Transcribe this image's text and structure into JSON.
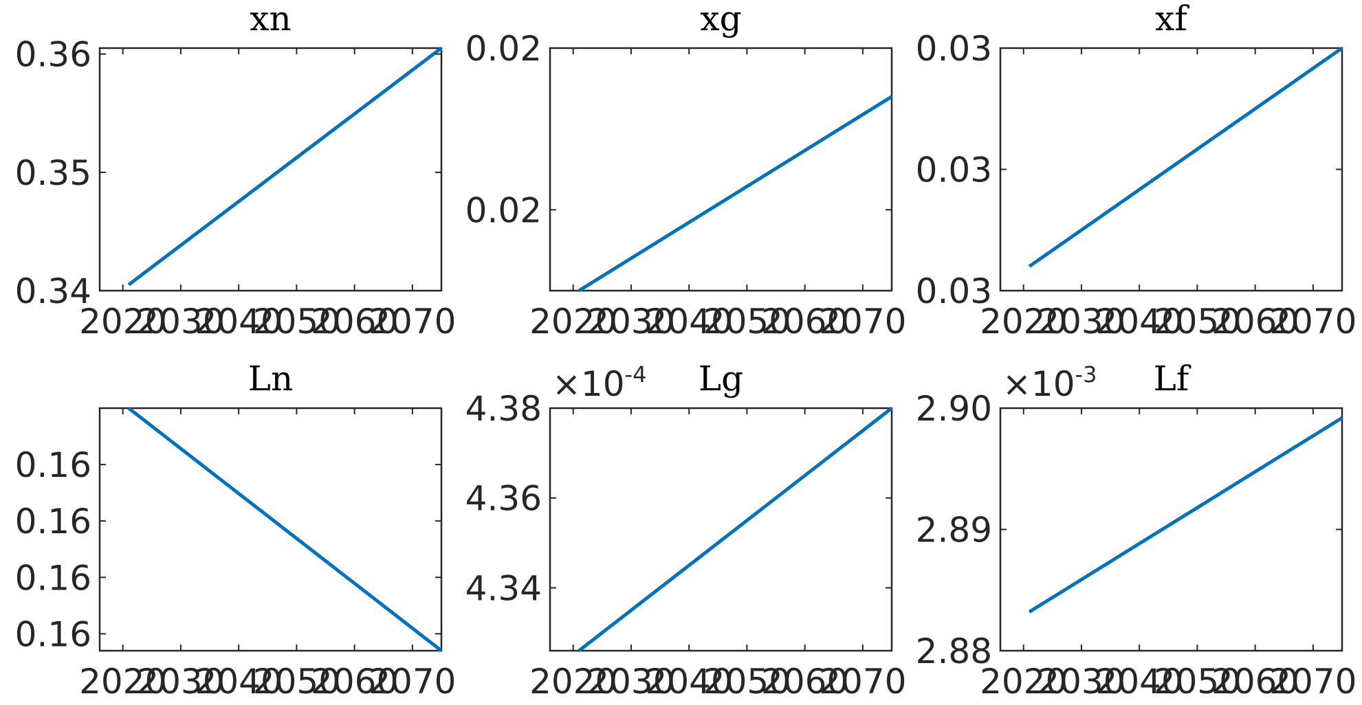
{
  "colors": {
    "series": "#0072BD",
    "axes": "#262626"
  },
  "chart_data": [
    {
      "type": "line",
      "title": "xn",
      "x_exponent": null,
      "y_exponent": null,
      "xlim": [
        2016,
        2075
      ],
      "ylim": [
        0.34,
        0.3605
      ],
      "x_ticks": [
        2020,
        2030,
        2040,
        2050,
        2060,
        2070
      ],
      "x_tick_labels": [
        "2020",
        "2030",
        "2040",
        "2050",
        "2060",
        "2070"
      ],
      "y_ticks": [
        0.34,
        0.35,
        0.36
      ],
      "y_tick_labels": [
        "0.34",
        "0.35",
        "0.36"
      ],
      "series": [
        {
          "x": [
            2021,
            2075
          ],
          "y": [
            0.3405,
            0.3605
          ]
        }
      ]
    },
    {
      "type": "line",
      "title": "xg",
      "x_exponent": null,
      "y_exponent": null,
      "xlim": [
        2016,
        2075
      ],
      "ylim": [
        0.0194,
        0.0224
      ],
      "x_ticks": [
        2020,
        2030,
        2040,
        2050,
        2060,
        2070
      ],
      "x_tick_labels": [
        "2020",
        "2030",
        "2040",
        "2050",
        "2060",
        "2070"
      ],
      "y_ticks": [
        0.0204,
        0.0224
      ],
      "y_tick_labels": [
        "0.02",
        "0.02"
      ],
      "series": [
        {
          "x": [
            2021,
            2075
          ],
          "y": [
            0.0194,
            0.0218
          ]
        }
      ]
    },
    {
      "type": "line",
      "title": "xf",
      "x_exponent": null,
      "y_exponent": null,
      "xlim": [
        2016,
        2075
      ],
      "ylim": [
        0.03,
        0.032
      ],
      "x_ticks": [
        2020,
        2030,
        2040,
        2050,
        2060,
        2070
      ],
      "x_tick_labels": [
        "2020",
        "2030",
        "2040",
        "2050",
        "2060",
        "2070"
      ],
      "y_ticks": [
        0.03,
        0.031,
        0.032
      ],
      "y_tick_labels": [
        "0.03",
        "0.03",
        "0.03"
      ],
      "series": [
        {
          "x": [
            2021,
            2075
          ],
          "y": [
            0.0302,
            0.032
          ]
        }
      ]
    },
    {
      "type": "line",
      "title": "Ln",
      "x_exponent": null,
      "y_exponent": null,
      "xlim": [
        2016,
        2075
      ],
      "ylim": [
        0.1593,
        0.1636
      ],
      "x_ticks": [
        2020,
        2030,
        2040,
        2050,
        2060,
        2070
      ],
      "x_tick_labels": [
        "2020",
        "2030",
        "2040",
        "2050",
        "2060",
        "2070"
      ],
      "y_ticks": [
        0.1596,
        0.1606,
        0.1616,
        0.1626
      ],
      "y_tick_labels": [
        "0.16",
        "0.16",
        "0.16",
        "0.16"
      ],
      "series": [
        {
          "x": [
            2021,
            2075
          ],
          "y": [
            0.1636,
            0.1593
          ]
        }
      ]
    },
    {
      "type": "line",
      "title": "Lg",
      "x_exponent": "-4",
      "y_exponent": null,
      "xlim": [
        2016,
        2075
      ],
      "ylim": [
        4.326,
        4.38
      ],
      "x_ticks": [
        2020,
        2030,
        2040,
        2050,
        2060,
        2070
      ],
      "x_tick_labels": [
        "2020",
        "2030",
        "2040",
        "2050",
        "2060",
        "2070"
      ],
      "y_ticks": [
        4.34,
        4.36,
        4.38
      ],
      "y_tick_labels": [
        "4.34",
        "4.36",
        "4.38"
      ],
      "series": [
        {
          "x": [
            2021,
            2075
          ],
          "y": [
            4.326,
            4.38
          ]
        }
      ]
    },
    {
      "type": "line",
      "title": "Lf",
      "x_exponent": "-3",
      "y_exponent": null,
      "xlim": [
        2016,
        2075
      ],
      "ylim": [
        2.88,
        2.9
      ],
      "x_ticks": [
        2020,
        2030,
        2040,
        2050,
        2060,
        2070
      ],
      "x_tick_labels": [
        "2020",
        "2030",
        "2040",
        "2050",
        "2060",
        "2070"
      ],
      "y_ticks": [
        2.88,
        2.89,
        2.9
      ],
      "y_tick_labels": [
        "2.88",
        "2.89",
        "2.90"
      ],
      "series": [
        {
          "x": [
            2021,
            2075
          ],
          "y": [
            2.8832,
            2.8992
          ]
        }
      ]
    }
  ]
}
